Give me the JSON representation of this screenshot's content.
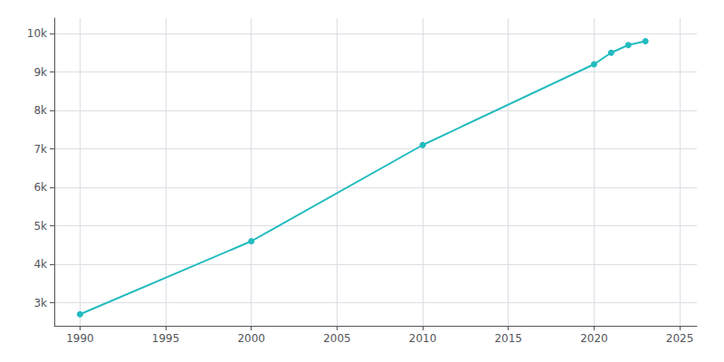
{
  "chart_data": {
    "type": "line",
    "x": [
      1990,
      2000,
      2010,
      2020,
      2021,
      2022,
      2023
    ],
    "values": [
      2700,
      4600,
      7100,
      9200,
      9500,
      9700,
      9800
    ],
    "color": "#22BBBF",
    "marker": "circle",
    "xlim": [
      1988.5,
      2026
    ],
    "ylim": [
      2400,
      10400
    ],
    "xticks": [
      1990,
      1995,
      2000,
      2005,
      2010,
      2015,
      2020,
      2025
    ],
    "yticks": [
      {
        "value": 3000,
        "label": "3k"
      },
      {
        "value": 4000,
        "label": "4k"
      },
      {
        "value": 5000,
        "label": "5k"
      },
      {
        "value": 6000,
        "label": "6k"
      },
      {
        "value": 7000,
        "label": "7k"
      },
      {
        "value": 8000,
        "label": "8k"
      },
      {
        "value": 9000,
        "label": "9k"
      },
      {
        "value": 10000,
        "label": "10k"
      }
    ],
    "grid": true
  }
}
